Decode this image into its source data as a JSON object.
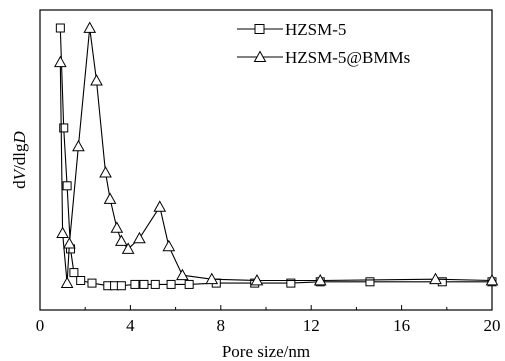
{
  "chart_data": {
    "type": "line",
    "xlabel": "Pore size/nm",
    "ylabel": "dV/dlgD",
    "ylabel_parts": {
      "d1": "d",
      "V": "V",
      "mid": "/dlg",
      "D": "D"
    },
    "xlim": [
      0,
      20
    ],
    "xticks": [
      0,
      4,
      8,
      12,
      16,
      20
    ],
    "xtick_labels": [
      "0",
      "4",
      "8",
      "12",
      "16",
      "20"
    ],
    "y_tick_labels_shown": false,
    "grid": false,
    "legend_position": "top-center",
    "series": [
      {
        "name": "HZSM-5",
        "marker": "square",
        "color": "#000000",
        "x": [
          0.9,
          1.05,
          1.2,
          1.35,
          1.5,
          1.8,
          2.3,
          3.0,
          3.3,
          3.6,
          4.2,
          4.6,
          5.1,
          5.8,
          6.6,
          7.8,
          9.5,
          11.1,
          12.4,
          14.6,
          17.8,
          20.0
        ],
        "y": [
          1.0,
          0.62,
          0.4,
          0.16,
          0.07,
          0.04,
          0.03,
          0.02,
          0.02,
          0.02,
          0.025,
          0.025,
          0.025,
          0.025,
          0.025,
          0.03,
          0.03,
          0.03,
          0.035,
          0.035,
          0.035,
          0.035
        ]
      },
      {
        "name": "HZSM-5@BMMs",
        "marker": "triangle",
        "color": "#000000",
        "x": [
          0.9,
          1.0,
          1.2,
          1.3,
          1.7,
          2.2,
          2.5,
          2.9,
          3.1,
          3.4,
          3.6,
          3.9,
          4.4,
          5.3,
          5.7,
          6.3,
          7.6,
          9.6,
          12.4,
          17.5,
          20.0
        ],
        "y": [
          0.87,
          0.22,
          0.03,
          0.18,
          0.55,
          1.0,
          0.8,
          0.45,
          0.35,
          0.24,
          0.19,
          0.16,
          0.2,
          0.32,
          0.17,
          0.06,
          0.045,
          0.04,
          0.04,
          0.045,
          0.04
        ]
      }
    ]
  }
}
